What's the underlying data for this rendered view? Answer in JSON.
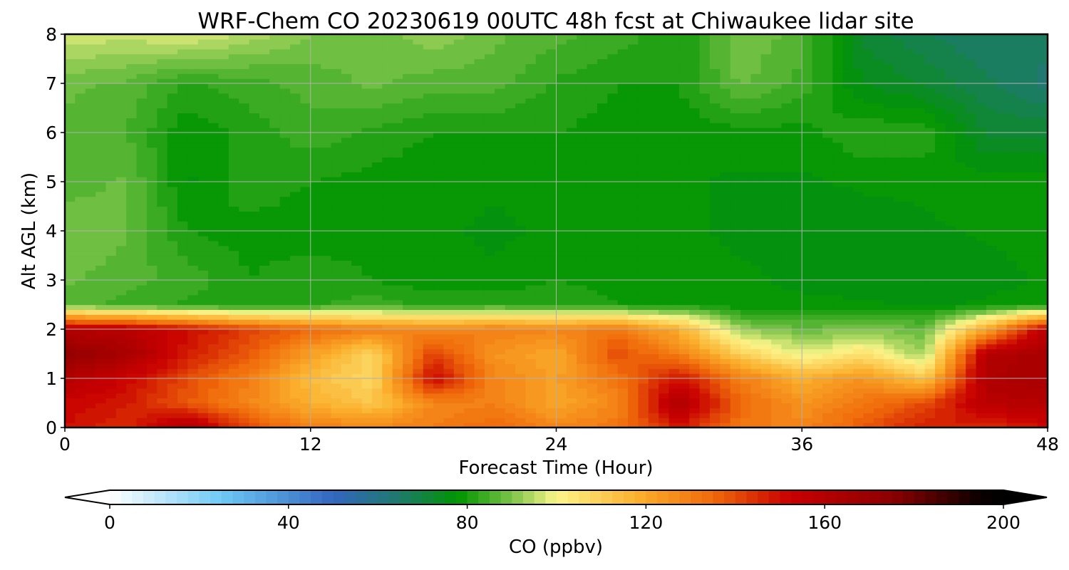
{
  "chart_data": {
    "type": "heatmap",
    "title": "WRF-Chem CO  20230619 00UTC 48h fcst at Chiwaukee lidar site",
    "xlabel": "Forecast Time (Hour)",
    "ylabel": "Alt AGL (km)",
    "xlim": [
      0,
      48
    ],
    "ylim": [
      0,
      8
    ],
    "x_ticks": [
      "0",
      "12",
      "24",
      "36",
      "48"
    ],
    "y_ticks": [
      "0",
      "1",
      "2",
      "3",
      "4",
      "5",
      "6",
      "7",
      "8"
    ],
    "grid": true,
    "x_hours": [
      0,
      3,
      6,
      9,
      12,
      15,
      18,
      21,
      24,
      27,
      30,
      33,
      36,
      39,
      42,
      45,
      48
    ],
    "alt_km": [
      0,
      0.5,
      1,
      1.5,
      2,
      2.5,
      3,
      4,
      5,
      6,
      7,
      8
    ],
    "values_ppbv": [
      [
        150,
        145,
        162,
        140,
        130,
        128,
        130,
        135,
        128,
        132,
        148,
        132,
        128,
        138,
        148,
        145,
        150
      ],
      [
        152,
        148,
        138,
        128,
        118,
        112,
        128,
        130,
        120,
        128,
        162,
        135,
        125,
        132,
        140,
        158,
        160
      ],
      [
        160,
        152,
        140,
        130,
        115,
        108,
        152,
        128,
        122,
        132,
        150,
        130,
        118,
        125,
        112,
        162,
        165
      ],
      [
        172,
        165,
        148,
        138,
        122,
        108,
        142,
        125,
        120,
        140,
        130,
        110,
        98,
        105,
        92,
        160,
        165
      ],
      [
        160,
        158,
        150,
        142,
        135,
        130,
        128,
        130,
        128,
        132,
        118,
        92,
        88,
        90,
        88,
        120,
        158
      ],
      [
        86,
        84,
        82,
        80,
        82,
        84,
        82,
        83,
        82,
        80,
        80,
        78,
        78,
        78,
        77,
        78,
        80
      ],
      [
        88,
        86,
        84,
        80,
        82,
        80,
        78,
        78,
        80,
        79,
        78,
        78,
        77,
        76,
        75,
        76,
        78
      ],
      [
        90,
        88,
        80,
        79,
        78,
        79,
        78,
        77,
        78,
        78,
        78,
        77,
        76,
        76,
        77,
        78,
        79
      ],
      [
        86,
        88,
        77,
        82,
        80,
        79,
        78,
        78,
        78,
        78,
        78,
        77,
        77,
        78,
        78,
        79,
        79
      ],
      [
        87,
        85,
        78,
        81,
        84,
        82,
        80,
        80,
        80,
        79,
        78,
        79,
        79,
        82,
        82,
        72,
        72
      ],
      [
        88,
        87,
        82,
        84,
        86,
        88,
        86,
        86,
        82,
        80,
        80,
        88,
        84,
        75,
        72,
        68,
        64
      ],
      [
        97,
        96,
        98,
        94,
        90,
        88,
        92,
        88,
        86,
        84,
        80,
        90,
        86,
        72,
        68,
        65,
        66
      ]
    ],
    "colorbar": {
      "label": "CO  (ppbv)",
      "ticks": [
        "0",
        "40",
        "80",
        "120",
        "160",
        "200"
      ],
      "min": 0,
      "max": 200,
      "step": 2.5,
      "extend": "both"
    },
    "colormap_stops": [
      [
        0,
        "#ffffff"
      ],
      [
        25,
        "#6ec9f5"
      ],
      [
        50,
        "#3366bf"
      ],
      [
        65,
        "#1e7a6a"
      ],
      [
        78,
        "#009400"
      ],
      [
        90,
        "#7cc44a"
      ],
      [
        100,
        "#fcf58a"
      ],
      [
        118,
        "#fbb02d"
      ],
      [
        135,
        "#f06a0a"
      ],
      [
        152,
        "#c90000"
      ],
      [
        175,
        "#8c0000"
      ],
      [
        195,
        "#0a0000"
      ],
      [
        200,
        "#000000"
      ]
    ]
  }
}
